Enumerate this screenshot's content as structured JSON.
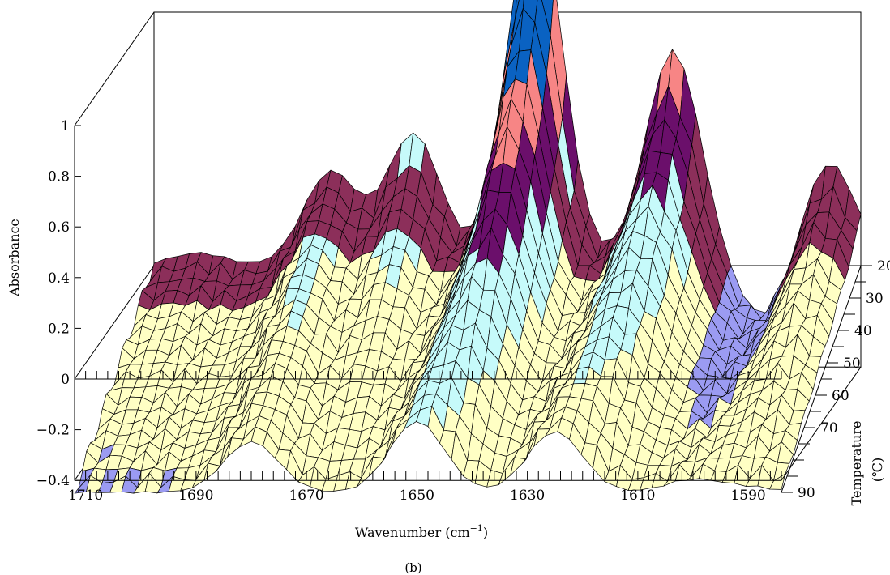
{
  "chart_data": {
    "type": "surface3d",
    "xlabel": "Wavenumber (cm",
    "xlabel_sup": "−1",
    "xlabel_close": ")",
    "ylabel": "Absorbance",
    "zlabel": "Temperature",
    "zlabel_unit": "(℃)",
    "caption": "(b)",
    "x_ticks": [
      "1710",
      "1690",
      "1670",
      "1650",
      "1630",
      "1610",
      "1590"
    ],
    "x_tick_values": [
      1710,
      1690,
      1670,
      1650,
      1630,
      1610,
      1590
    ],
    "y_ticks": [
      "−0.4",
      "−0.2",
      "0",
      "0.2",
      "0.4",
      "0.6",
      "0.8",
      "1"
    ],
    "y_tick_values": [
      -0.4,
      -0.2,
      0,
      0.2,
      0.4,
      0.6,
      0.8,
      1
    ],
    "temp_ticks": [
      "20",
      "30",
      "40",
      "50",
      "60",
      "70",
      "90"
    ],
    "temp_tick_values": [
      20,
      30,
      40,
      50,
      60,
      70,
      90
    ],
    "xlim": [
      1712,
      1584
    ],
    "ylim": [
      -0.4,
      1.0
    ],
    "temp_range": [
      20,
      90
    ],
    "color_bands": [
      {
        "min": -1.0,
        "max": 0.0,
        "color": "#9b9bf2"
      },
      {
        "min": 0.0,
        "max": 0.25,
        "color": "#ffffc4"
      },
      {
        "min": 0.25,
        "max": 0.5,
        "color": "#c6fafa"
      },
      {
        "min": 0.5,
        "max": 0.7,
        "color": "#6b0f6b"
      },
      {
        "min": 0.7,
        "max": 0.9,
        "color": "#f78585"
      },
      {
        "min": 0.9,
        "max": 2.0,
        "color": "#0a62c2"
      }
    ],
    "side_color": "#8c2f5a",
    "peaks_at_20C": [
      {
        "wavenumber": 1704,
        "absorbance": 0.05
      },
      {
        "wavenumber": 1680,
        "absorbance": 0.37
      },
      {
        "wavenumber": 1665,
        "absorbance": 0.52
      },
      {
        "wavenumber": 1643,
        "absorbance": 1.44
      },
      {
        "wavenumber": 1618,
        "absorbance": 0.85
      },
      {
        "wavenumber": 1601,
        "absorbance": -0.22
      },
      {
        "wavenumber": 1590,
        "absorbance": 0.42
      }
    ],
    "peaks_at_90C": [
      {
        "wavenumber": 1680,
        "absorbance": 0.2
      },
      {
        "wavenumber": 1650,
        "absorbance": 0.28
      },
      {
        "wavenumber": 1625,
        "absorbance": 0.24
      },
      {
        "wavenumber": 1600,
        "absorbance": 0.05
      },
      {
        "wavenumber": 1590,
        "absorbance": 0.02
      }
    ]
  }
}
